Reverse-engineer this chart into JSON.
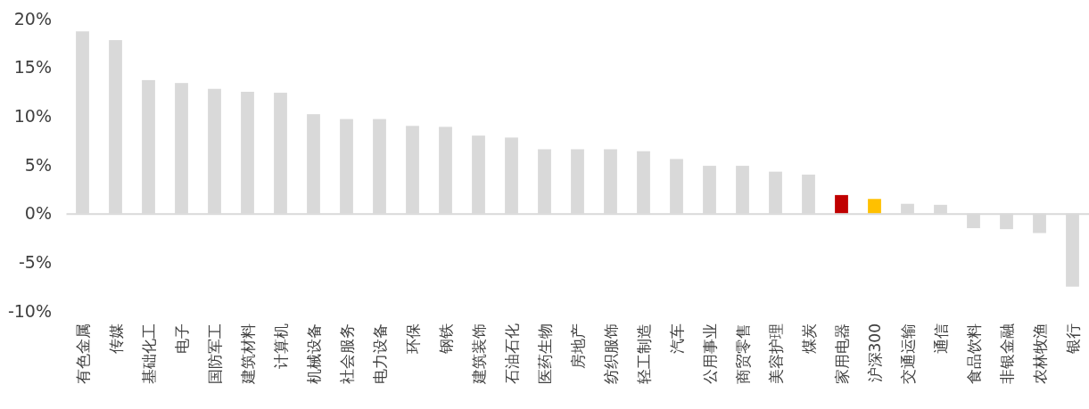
{
  "chart_data": {
    "type": "bar",
    "categories": [
      "有色金属",
      "传媒",
      "基础化工",
      "电子",
      "国防军工",
      "建筑材料",
      "计算机",
      "机械设备",
      "社会服务",
      "电力设备",
      "环保",
      "钢铁",
      "建筑装饰",
      "石油石化",
      "医药生物",
      "房地产",
      "纺织服饰",
      "轻工制造",
      "汽车",
      "公用事业",
      "商贸零售",
      "美容护理",
      "煤炭",
      "家用电器",
      "沪深300",
      "交通运输",
      "通信",
      "食品饮料",
      "非银金融",
      "农林牧渔",
      "银行"
    ],
    "values": [
      18.7,
      17.8,
      13.7,
      13.4,
      12.8,
      12.5,
      12.4,
      10.2,
      9.7,
      9.7,
      9.0,
      8.9,
      8.0,
      7.8,
      6.6,
      6.6,
      6.6,
      6.4,
      5.6,
      4.9,
      4.9,
      4.3,
      4.0,
      1.9,
      1.5,
      1.0,
      0.9,
      -1.5,
      -1.6,
      -2.0,
      -7.5
    ],
    "colors": [
      "#d9d9d9",
      "#d9d9d9",
      "#d9d9d9",
      "#d9d9d9",
      "#d9d9d9",
      "#d9d9d9",
      "#d9d9d9",
      "#d9d9d9",
      "#d9d9d9",
      "#d9d9d9",
      "#d9d9d9",
      "#d9d9d9",
      "#d9d9d9",
      "#d9d9d9",
      "#d9d9d9",
      "#d9d9d9",
      "#d9d9d9",
      "#d9d9d9",
      "#d9d9d9",
      "#d9d9d9",
      "#d9d9d9",
      "#d9d9d9",
      "#d9d9d9",
      "#c00000",
      "#ffc000",
      "#d9d9d9",
      "#d9d9d9",
      "#d9d9d9",
      "#d9d9d9",
      "#d9d9d9",
      "#d9d9d9"
    ],
    "ylim": [
      -10,
      20
    ],
    "yticks": [
      {
        "value": -10,
        "label": "-10%"
      },
      {
        "value": -5,
        "label": "-5%"
      },
      {
        "value": 0,
        "label": "0%"
      },
      {
        "value": 5,
        "label": "5%"
      },
      {
        "value": 10,
        "label": "10%"
      },
      {
        "value": 15,
        "label": "15%"
      },
      {
        "value": 20,
        "label": "20%"
      }
    ]
  }
}
